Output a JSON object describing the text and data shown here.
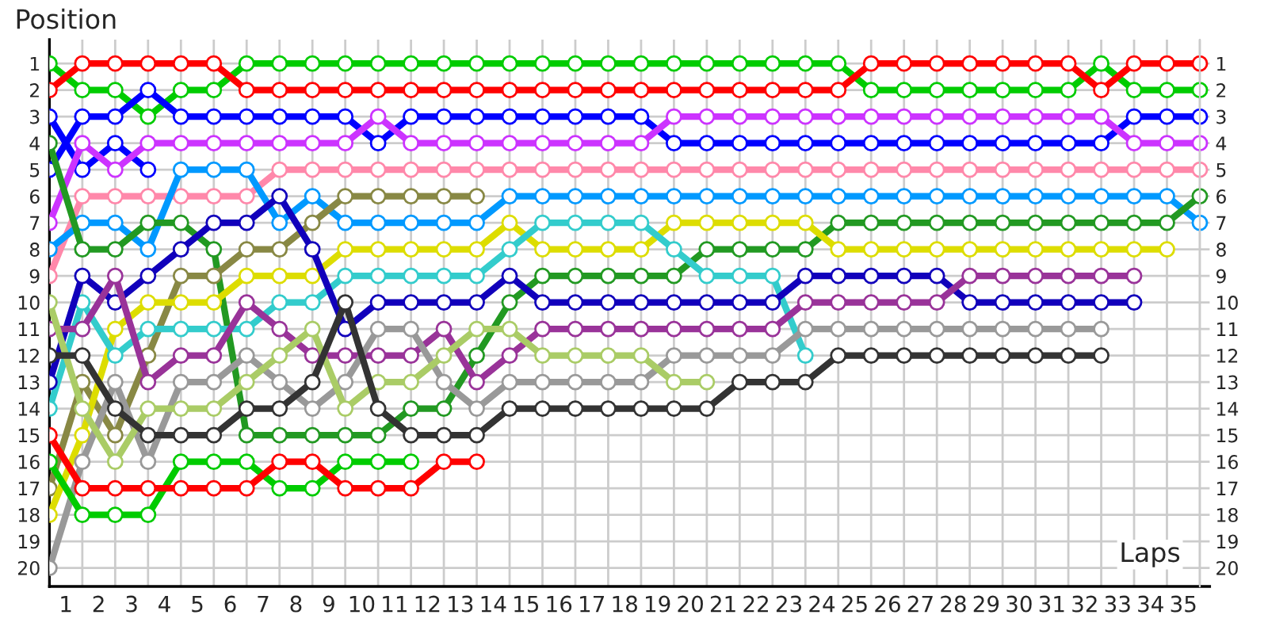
{
  "chart_data": {
    "type": "line",
    "xlabel": "Laps",
    "ylabel": "Position",
    "x": [
      0,
      1,
      2,
      3,
      4,
      5,
      6,
      7,
      8,
      9,
      10,
      11,
      12,
      13,
      14,
      15,
      16,
      17,
      18,
      19,
      20,
      21,
      22,
      23,
      24,
      25,
      26,
      27,
      28,
      29,
      30,
      31,
      32,
      33,
      34,
      35
    ],
    "xlim": [
      0,
      35.3
    ],
    "xticks": [
      {
        "value": 0.5,
        "label": "1"
      },
      {
        "value": 1.5,
        "label": "2"
      },
      {
        "value": 2.5,
        "label": "3"
      },
      {
        "value": 3.5,
        "label": "4"
      },
      {
        "value": 4.5,
        "label": "5"
      },
      {
        "value": 5.5,
        "label": "6"
      },
      {
        "value": 6.5,
        "label": "7"
      },
      {
        "value": 7.5,
        "label": "8"
      },
      {
        "value": 8.5,
        "label": "9"
      },
      {
        "value": 9.5,
        "label": "10"
      },
      {
        "value": 10.5,
        "label": "11"
      },
      {
        "value": 11.5,
        "label": "12"
      },
      {
        "value": 12.5,
        "label": "13"
      },
      {
        "value": 13.5,
        "label": "14"
      },
      {
        "value": 14.5,
        "label": "15"
      },
      {
        "value": 15.5,
        "label": "16"
      },
      {
        "value": 16.5,
        "label": "17"
      },
      {
        "value": 17.5,
        "label": "18"
      },
      {
        "value": 18.5,
        "label": "19"
      },
      {
        "value": 19.5,
        "label": "20"
      },
      {
        "value": 20.5,
        "label": "21"
      },
      {
        "value": 21.5,
        "label": "22"
      },
      {
        "value": 22.5,
        "label": "23"
      },
      {
        "value": 23.5,
        "label": "24"
      },
      {
        "value": 24.5,
        "label": "25"
      },
      {
        "value": 25.5,
        "label": "26"
      },
      {
        "value": 26.5,
        "label": "27"
      },
      {
        "value": 27.5,
        "label": "28"
      },
      {
        "value": 28.5,
        "label": "29"
      },
      {
        "value": 29.5,
        "label": "30"
      },
      {
        "value": 30.5,
        "label": "31"
      },
      {
        "value": 31.5,
        "label": "32"
      },
      {
        "value": 32.5,
        "label": "33"
      },
      {
        "value": 33.5,
        "label": "34"
      },
      {
        "value": 34.5,
        "label": "35"
      }
    ],
    "ylim": [
      20.7,
      0.1
    ],
    "yticks": [
      1,
      2,
      3,
      4,
      5,
      6,
      7,
      8,
      9,
      10,
      11,
      12,
      13,
      14,
      15,
      16,
      17,
      18,
      19,
      20
    ],
    "y2lim": [
      20.7,
      0.1
    ],
    "y2ticks": [
      1,
      2,
      3,
      4,
      5,
      6,
      7,
      8,
      9,
      10,
      11,
      12,
      13,
      14,
      15,
      16,
      17,
      18,
      19,
      20
    ],
    "grid": true,
    "marker": "circle",
    "line_style": "solid",
    "legend": false,
    "series": [
      {
        "color": "#00cc00",
        "values": [
          1,
          2,
          2,
          3,
          2,
          2,
          1,
          1,
          1,
          1,
          1,
          1,
          1,
          1,
          1,
          1,
          1,
          1,
          1,
          1,
          1,
          1,
          1,
          1,
          1,
          2,
          2,
          2,
          2,
          2,
          2,
          2,
          1,
          2,
          2,
          2
        ]
      },
      {
        "color": "#ff0000",
        "values": [
          2,
          1,
          1,
          1,
          1,
          1,
          2,
          2,
          2,
          2,
          2,
          2,
          2,
          2,
          2,
          2,
          2,
          2,
          2,
          2,
          2,
          2,
          2,
          2,
          2,
          1,
          1,
          1,
          1,
          1,
          1,
          1,
          2,
          1,
          1,
          1
        ]
      },
      {
        "color": "#0000ff",
        "values": [
          5,
          3,
          3,
          2,
          3,
          3,
          3,
          3,
          3,
          3,
          4,
          3,
          3,
          3,
          3,
          3,
          3,
          3,
          3,
          4,
          4,
          4,
          4,
          4,
          4,
          4,
          4,
          4,
          4,
          4,
          4,
          4,
          4,
          3,
          3,
          3
        ]
      },
      {
        "color": "#0000ff",
        "values": [
          3,
          5,
          4,
          5,
          null,
          null,
          null,
          null,
          null,
          null,
          null,
          null,
          null,
          null,
          null,
          null,
          null,
          null,
          null,
          null,
          null,
          null,
          null,
          null,
          null,
          null,
          null,
          null,
          null,
          null,
          null,
          null,
          null,
          null,
          null,
          null
        ]
      },
      {
        "color": "#cc33ff",
        "values": [
          7,
          4,
          5,
          4,
          4,
          4,
          4,
          4,
          4,
          4,
          3,
          4,
          4,
          4,
          4,
          4,
          4,
          4,
          4,
          3,
          3,
          3,
          3,
          3,
          3,
          3,
          3,
          3,
          3,
          3,
          3,
          3,
          3,
          4,
          4,
          4
        ]
      },
      {
        "color": "#ff88aa",
        "values": [
          9,
          6,
          6,
          6,
          6,
          6,
          6,
          5,
          5,
          5,
          5,
          5,
          5,
          5,
          5,
          5,
          5,
          5,
          5,
          5,
          5,
          5,
          5,
          5,
          5,
          5,
          5,
          5,
          5,
          5,
          5,
          5,
          5,
          5,
          5,
          5
        ]
      },
      {
        "color": "#0099ff",
        "values": [
          8,
          7,
          7,
          8,
          5,
          5,
          5,
          7,
          6,
          7,
          7,
          7,
          7,
          7,
          6,
          6,
          6,
          6,
          6,
          6,
          6,
          6,
          6,
          6,
          6,
          6,
          6,
          6,
          6,
          6,
          6,
          6,
          6,
          6,
          6,
          7
        ]
      },
      {
        "color": "#229922",
        "values": [
          4,
          8,
          8,
          7,
          7,
          8,
          15,
          15,
          15,
          15,
          15,
          14,
          14,
          12,
          10,
          9,
          9,
          9,
          9,
          9,
          8,
          8,
          8,
          8,
          7,
          7,
          7,
          7,
          7,
          7,
          7,
          7,
          7,
          7,
          7,
          6
        ]
      },
      {
        "color": "#888844",
        "values": [
          17,
          13,
          15,
          12,
          9,
          9,
          8,
          8,
          7,
          6,
          6,
          6,
          6,
          6,
          null,
          null,
          null,
          null,
          null,
          null,
          null,
          null,
          null,
          null,
          null,
          null,
          null,
          null,
          null,
          null,
          null,
          null,
          null,
          null,
          null,
          null
        ]
      },
      {
        "color": "#dddd00",
        "values": [
          18,
          15,
          11,
          10,
          10,
          10,
          9,
          9,
          9,
          8,
          8,
          8,
          8,
          8,
          7,
          8,
          8,
          8,
          8,
          7,
          7,
          7,
          7,
          7,
          8,
          8,
          8,
          8,
          8,
          8,
          8,
          8,
          8,
          8,
          8,
          null
        ]
      },
      {
        "color": "#33cccc",
        "values": [
          14,
          10,
          12,
          11,
          11,
          11,
          11,
          10,
          10,
          9,
          9,
          9,
          9,
          9,
          8,
          7,
          7,
          7,
          7,
          8,
          9,
          9,
          9,
          12,
          null,
          null,
          null,
          null,
          null,
          null,
          null,
          null,
          null,
          null,
          null,
          null
        ]
      },
      {
        "color": "#1100bb",
        "values": [
          13,
          9,
          10,
          9,
          8,
          7,
          7,
          6,
          8,
          11,
          10,
          10,
          10,
          10,
          9,
          10,
          10,
          10,
          10,
          10,
          10,
          10,
          10,
          9,
          9,
          9,
          9,
          9,
          10,
          10,
          10,
          10,
          10,
          10,
          null,
          null
        ]
      },
      {
        "color": "#993399",
        "values": [
          11,
          11,
          9,
          13,
          12,
          12,
          10,
          11,
          12,
          12,
          12,
          12,
          11,
          13,
          12,
          11,
          11,
          11,
          11,
          11,
          11,
          11,
          11,
          10,
          10,
          10,
          10,
          10,
          9,
          9,
          9,
          9,
          9,
          9,
          null,
          null
        ]
      },
      {
        "color": "#999999",
        "values": [
          20,
          16,
          13,
          16,
          13,
          13,
          12,
          13,
          14,
          13,
          11,
          11,
          13,
          14,
          13,
          13,
          13,
          13,
          13,
          12,
          12,
          12,
          12,
          11,
          11,
          11,
          11,
          11,
          11,
          11,
          11,
          11,
          11,
          null,
          null,
          null
        ]
      },
      {
        "color": "#aacc66",
        "values": [
          10,
          14,
          16,
          14,
          14,
          14,
          13,
          12,
          11,
          14,
          13,
          13,
          12,
          11,
          11,
          12,
          12,
          12,
          12,
          13,
          13,
          null,
          null,
          null,
          null,
          null,
          null,
          null,
          null,
          null,
          null,
          null,
          null,
          null,
          null,
          null
        ]
      },
      {
        "color": "#333333",
        "values": [
          12,
          12,
          14,
          15,
          15,
          15,
          14,
          14,
          13,
          10,
          14,
          15,
          15,
          15,
          14,
          14,
          14,
          14,
          14,
          14,
          14,
          13,
          13,
          13,
          12,
          12,
          12,
          12,
          12,
          12,
          12,
          12,
          12,
          null,
          null,
          null
        ]
      },
      {
        "color": "#00cc00",
        "values": [
          16,
          18,
          18,
          18,
          16,
          16,
          16,
          17,
          17,
          16,
          16,
          16,
          null,
          null,
          null,
          null,
          null,
          null,
          null,
          null,
          null,
          null,
          null,
          null,
          null,
          null,
          null,
          null,
          null,
          null,
          null,
          null,
          null,
          null,
          null,
          null
        ]
      },
      {
        "color": "#ff0000",
        "values": [
          15,
          17,
          17,
          17,
          17,
          17,
          17,
          16,
          16,
          17,
          17,
          17,
          16,
          16,
          null,
          null,
          null,
          null,
          null,
          null,
          null,
          null,
          null,
          null,
          null,
          null,
          null,
          null,
          null,
          null,
          null,
          null,
          null,
          null,
          null,
          null
        ]
      }
    ]
  }
}
